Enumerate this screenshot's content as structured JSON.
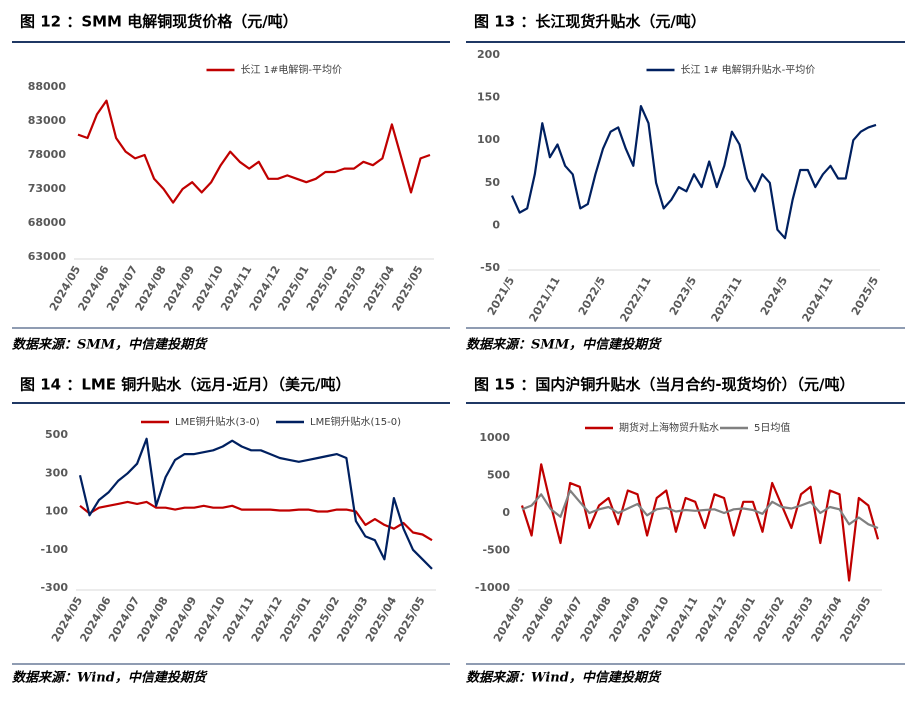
{
  "chart_data": [
    {
      "type": "line",
      "title": "图 12 ：SMM 电解铜现货价格（元/吨）",
      "source": "数据来源：SMM，中信建投期货",
      "categories": [
        "2024/05",
        null,
        null,
        "2024/06",
        null,
        null,
        "2024/07",
        null,
        null,
        "2024/08",
        null,
        null,
        "2024/09",
        null,
        null,
        "2024/10",
        null,
        null,
        "2024/11",
        null,
        null,
        "2024/12",
        null,
        null,
        "2025/01",
        null,
        null,
        "2025/02",
        null,
        null,
        "2025/03",
        null,
        null,
        "2025/04",
        null,
        null,
        "2025/05",
        null
      ],
      "series": [
        {
          "name": "长江 1#电解铜-平均价",
          "color": "#c00000",
          "values": [
            81000,
            80500,
            84000,
            86000,
            80500,
            78500,
            77500,
            78000,
            74500,
            73000,
            71000,
            73000,
            74000,
            72500,
            74000,
            76500,
            78500,
            77000,
            76000,
            77000,
            74500,
            74500,
            75000,
            74500,
            74000,
            74500,
            75500,
            75500,
            76000,
            76000,
            77000,
            76500,
            77500,
            82500,
            77500,
            72500,
            77500,
            78000
          ]
        }
      ],
      "ylim": [
        63000,
        88000
      ],
      "yticks": [
        63000,
        68000,
        73000,
        78000,
        83000,
        88000
      ],
      "legend": "top"
    },
    {
      "type": "line",
      "title": "图 13 ：长江现货升贴水（元/吨）",
      "source": "数据来源：SMM，中信建投期货",
      "categories": [
        "2021/5",
        null,
        null,
        null,
        null,
        null,
        "2021/11",
        null,
        null,
        null,
        null,
        null,
        "2022/5",
        null,
        null,
        null,
        null,
        null,
        "2022/11",
        null,
        null,
        null,
        null,
        null,
        "2023/5",
        null,
        null,
        null,
        null,
        null,
        "2023/11",
        null,
        null,
        null,
        null,
        null,
        "2024/5",
        null,
        null,
        null,
        null,
        null,
        "2024/11",
        null,
        null,
        null,
        null,
        null,
        "2025/5"
      ],
      "series": [
        {
          "name": "长江 1# 电解铜升贴水-平均价",
          "color": "#002060",
          "values": [
            35,
            15,
            20,
            60,
            120,
            80,
            95,
            70,
            60,
            20,
            25,
            60,
            90,
            110,
            115,
            90,
            70,
            140,
            120,
            50,
            20,
            30,
            45,
            40,
            60,
            45,
            75,
            45,
            70,
            110,
            95,
            55,
            40,
            60,
            50,
            -5,
            -15,
            30,
            65,
            65,
            45,
            60,
            70,
            55,
            55,
            100,
            110,
            115,
            118
          ]
        }
      ],
      "ylim": [
        -50,
        200
      ],
      "yticks": [
        -50,
        0,
        50,
        100,
        150,
        200
      ],
      "legend": "top"
    },
    {
      "type": "line",
      "title": "图 14 ：LME 铜升贴水（远月-近月）（美元/吨）",
      "source": "数据来源：Wind，中信建投期货",
      "categories": [
        "2024/05",
        null,
        null,
        "2024/06",
        null,
        null,
        "2024/07",
        null,
        null,
        "2024/08",
        null,
        null,
        "2024/09",
        null,
        null,
        "2024/10",
        null,
        null,
        "2024/11",
        null,
        null,
        "2024/12",
        null,
        null,
        "2025/01",
        null,
        null,
        "2025/02",
        null,
        null,
        "2025/03",
        null,
        null,
        "2025/04",
        null,
        null,
        "2025/05",
        null
      ],
      "series": [
        {
          "name": "LME铜升贴水(3-0)",
          "color": "#c00000",
          "values": [
            130,
            90,
            120,
            130,
            140,
            150,
            140,
            150,
            120,
            120,
            110,
            120,
            120,
            130,
            120,
            120,
            130,
            110,
            110,
            110,
            110,
            105,
            105,
            110,
            110,
            100,
            100,
            110,
            110,
            100,
            30,
            60,
            30,
            10,
            40,
            -10,
            -20,
            -50
          ]
        },
        {
          "name": "LME铜升贴水(15-0)",
          "color": "#002060",
          "values": [
            290,
            80,
            160,
            200,
            260,
            300,
            350,
            480,
            130,
            280,
            370,
            400,
            400,
            410,
            420,
            440,
            470,
            440,
            420,
            420,
            400,
            380,
            370,
            360,
            370,
            380,
            390,
            400,
            380,
            50,
            -30,
            -50,
            -150,
            170,
            10,
            -100,
            -150,
            -200
          ]
        }
      ],
      "ylim": [
        -300,
        500
      ],
      "yticks": [
        -300,
        -100,
        100,
        300,
        500
      ],
      "legend": "top"
    },
    {
      "type": "line",
      "title": "图 15 ：国内沪铜升贴水（当月合约-现货均价）（元/吨）",
      "source": "数据来源：Wind，中信建投期货",
      "categories": [
        "2024/05",
        null,
        null,
        "2024/06",
        null,
        null,
        "2024/07",
        null,
        null,
        "2024/08",
        null,
        null,
        "2024/09",
        null,
        null,
        "2024/10",
        null,
        null,
        "2024/11",
        null,
        null,
        "2024/12",
        null,
        null,
        "2025/01",
        null,
        null,
        "2025/02",
        null,
        null,
        "2025/03",
        null,
        null,
        "2025/04",
        null,
        null,
        "2025/05",
        null
      ],
      "series": [
        {
          "name": "期货对上海物贸升贴水",
          "color": "#c00000",
          "values": [
            100,
            -300,
            650,
            100,
            -400,
            400,
            350,
            -200,
            100,
            200,
            -150,
            300,
            250,
            -300,
            200,
            300,
            -250,
            200,
            150,
            -200,
            250,
            200,
            -300,
            150,
            150,
            -250,
            400,
            100,
            -200,
            250,
            350,
            -400,
            300,
            250,
            -900,
            200,
            100,
            -350
          ]
        },
        {
          "name": "5日均值",
          "color": "#808080",
          "values": [
            50,
            100,
            250,
            50,
            -50,
            300,
            150,
            0,
            50,
            80,
            0,
            60,
            120,
            -30,
            50,
            70,
            20,
            40,
            30,
            40,
            50,
            0,
            50,
            60,
            40,
            -10,
            150,
            80,
            60,
            100,
            150,
            0,
            80,
            50,
            -150,
            -60,
            -150,
            -200
          ]
        }
      ],
      "ylim": [
        -1000,
        1000
      ],
      "yticks": [
        -1000,
        -500,
        0,
        500,
        1000
      ],
      "legend": "top"
    }
  ]
}
